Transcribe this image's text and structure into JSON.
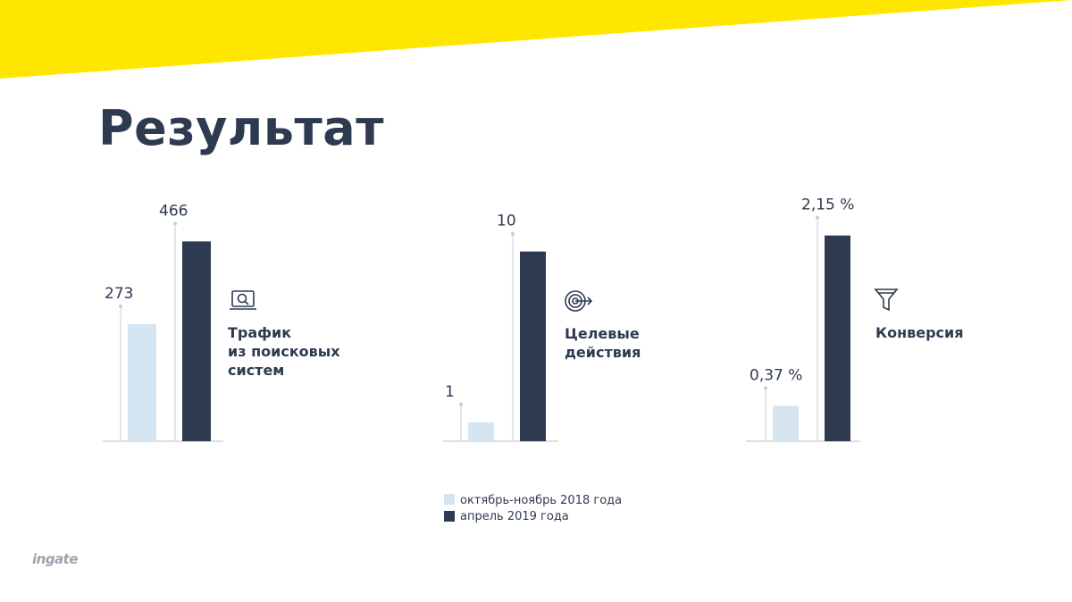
{
  "title": "Результат",
  "logo": "ingate",
  "colors": {
    "accent": "#ffe600",
    "before": "#d6e5f2",
    "after": "#2e3a4f",
    "leader": "#c8cdd3",
    "baseline": "#b9bfc6"
  },
  "legend": {
    "before": "октябрь-ноябрь 2018 года",
    "after": "апрель 2019 года"
  },
  "chart_data": [
    {
      "type": "bar",
      "label_lines": [
        "Трафик",
        "из поисковых",
        "систем"
      ],
      "icon": "search-laptop-icon",
      "values": [
        273,
        466
      ],
      "value_labels": [
        "273",
        "466"
      ],
      "ylim": [
        0,
        500
      ]
    },
    {
      "type": "bar",
      "label_lines": [
        "Целевые",
        "действия"
      ],
      "icon": "target-icon",
      "values": [
        1,
        10
      ],
      "value_labels": [
        "1",
        "10"
      ],
      "ylim": [
        0,
        11.3
      ]
    },
    {
      "type": "bar",
      "label_lines": [
        "Конверсия"
      ],
      "icon": "funnel-icon",
      "values": [
        0.37,
        2.15
      ],
      "value_labels": [
        "0,37 %",
        "2,15 %"
      ],
      "ylim": [
        0,
        2.24
      ]
    }
  ]
}
